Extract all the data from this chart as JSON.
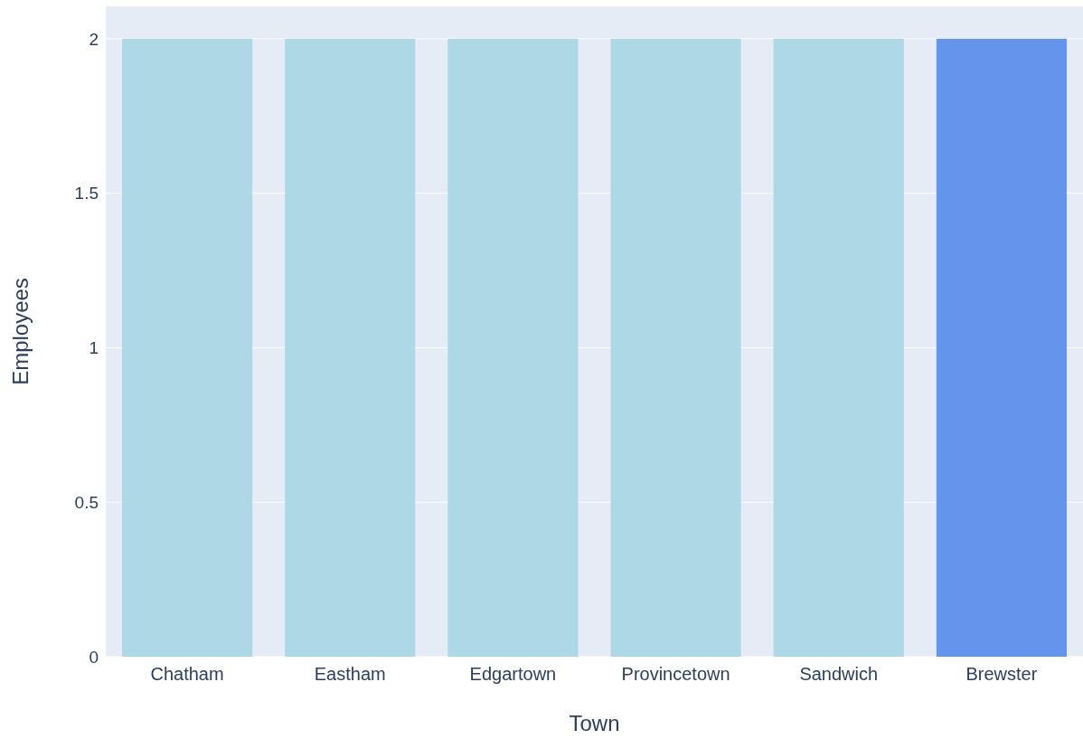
{
  "chart_data": {
    "type": "bar",
    "xlabel": "Town",
    "ylabel": "Employees",
    "categories": [
      "Chatham",
      "Eastham",
      "Edgartown",
      "Provincetown",
      "Sandwich",
      "Brewster"
    ],
    "values": [
      2,
      2,
      2,
      2,
      2,
      2
    ],
    "colors": [
      "#add8e6",
      "#add8e6",
      "#add8e6",
      "#add8e6",
      "#add8e6",
      "#6495ed"
    ],
    "ylim": [
      0,
      2.105
    ],
    "yticks": [
      0,
      0.5,
      1,
      1.5,
      2
    ],
    "grid": "y"
  }
}
